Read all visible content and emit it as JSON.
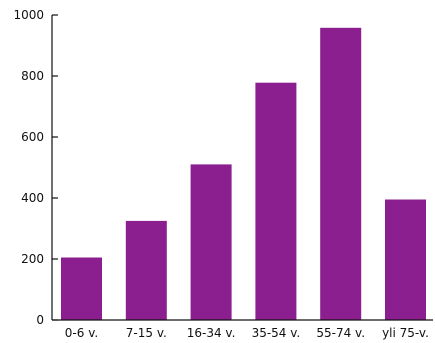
{
  "chart_data": {
    "type": "bar",
    "categories": [
      "0-6 v.",
      "7-15 v.",
      "16-34 v.",
      "35-54 v.",
      "55-74 v.",
      "yli 75-v."
    ],
    "values": [
      205,
      325,
      510,
      778,
      958,
      395
    ],
    "ylim": [
      0,
      1000
    ],
    "yticks": [
      0,
      200,
      400,
      600,
      800,
      1000
    ],
    "ytick_labels": [
      "0",
      "200",
      "400",
      "600",
      "800",
      "1000"
    ],
    "grid": false,
    "legend": "none",
    "bar_color": "#8b1f8f",
    "axis_color": "#111111"
  }
}
